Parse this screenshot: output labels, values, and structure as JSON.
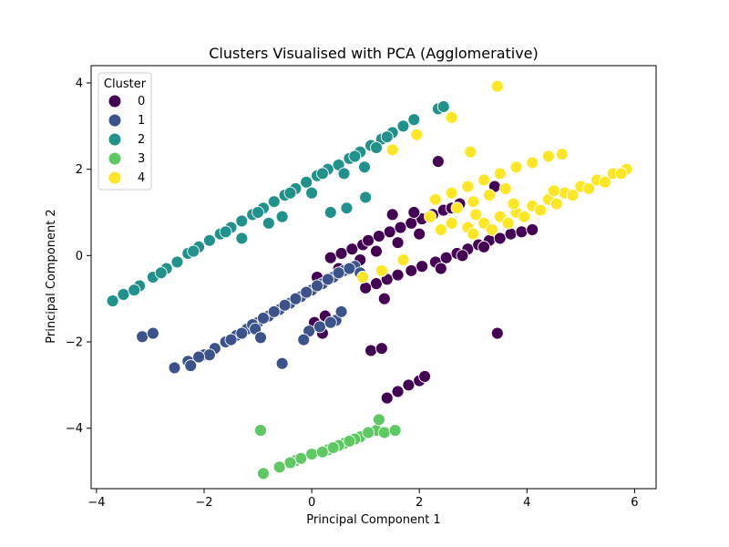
{
  "chart_data": {
    "type": "scatter",
    "title": "Clusters Visualised with PCA (Agglomerative)",
    "xlabel": "Principal Component 1",
    "ylabel": "Principal Component 2",
    "xlim": [
      -4.1,
      6.4
    ],
    "ylim": [
      -5.4,
      4.4
    ],
    "xticks": [
      -4,
      -2,
      0,
      2,
      4,
      6
    ],
    "xtick_labels": [
      "−4",
      "−2",
      "0",
      "2",
      "4",
      "6"
    ],
    "yticks": [
      -4,
      -2,
      0,
      2,
      4
    ],
    "ytick_labels": [
      "−4",
      "−2",
      "0",
      "2",
      "4"
    ],
    "grid": false,
    "legend": {
      "title": "Cluster",
      "placement": "top-left"
    },
    "series": [
      {
        "name": "0",
        "color": "#440154",
        "points": [
          [
            0.35,
            -0.05
          ],
          [
            0.55,
            0.05
          ],
          [
            0.75,
            0.15
          ],
          [
            0.95,
            0.25
          ],
          [
            1.05,
            0.35
          ],
          [
            1.25,
            0.45
          ],
          [
            1.45,
            0.55
          ],
          [
            1.65,
            0.65
          ],
          [
            1.85,
            0.75
          ],
          [
            2.05,
            0.85
          ],
          [
            2.25,
            0.95
          ],
          [
            2.45,
            1.05
          ],
          [
            2.6,
            1.1
          ],
          [
            2.75,
            1.2
          ],
          [
            2.0,
            0.5
          ],
          [
            1.6,
            0.3
          ],
          [
            1.2,
            0.1
          ],
          [
            0.9,
            -0.1
          ],
          [
            0.5,
            -0.3
          ],
          [
            0.1,
            -0.5
          ],
          [
            1.2,
            -0.65
          ],
          [
            1.4,
            -0.55
          ],
          [
            1.6,
            -0.45
          ],
          [
            1.85,
            -0.35
          ],
          [
            2.05,
            -0.25
          ],
          [
            2.3,
            -0.15
          ],
          [
            2.5,
            -0.05
          ],
          [
            2.7,
            0.05
          ],
          [
            2.9,
            0.15
          ],
          [
            3.1,
            0.25
          ],
          [
            3.3,
            0.35
          ],
          [
            3.5,
            0.4
          ],
          [
            3.7,
            0.5
          ],
          [
            3.9,
            0.55
          ],
          [
            4.1,
            0.6
          ],
          [
            1.0,
            -0.75
          ],
          [
            1.35,
            -1.0
          ],
          [
            2.4,
            -0.3
          ],
          [
            2.8,
            0.0
          ],
          [
            3.2,
            0.2
          ],
          [
            2.35,
            2.18
          ],
          [
            3.4,
            1.6
          ],
          [
            3.45,
            -1.8
          ],
          [
            1.1,
            -2.2
          ],
          [
            1.3,
            -2.15
          ],
          [
            1.4,
            -3.3
          ],
          [
            1.6,
            -3.15
          ],
          [
            1.8,
            -3.0
          ],
          [
            2.0,
            -2.9
          ],
          [
            2.1,
            -2.8
          ],
          [
            0.25,
            -1.4
          ],
          [
            0.05,
            -1.55
          ],
          [
            0.2,
            -1.8
          ],
          [
            1.5,
            0.95
          ],
          [
            1.9,
            1.0
          ]
        ]
      },
      {
        "name": "1",
        "color": "#3b528b",
        "points": [
          [
            -2.55,
            -2.6
          ],
          [
            -2.3,
            -2.45
          ],
          [
            -2.0,
            -2.3
          ],
          [
            -1.8,
            -2.15
          ],
          [
            -1.6,
            -2.0
          ],
          [
            -1.4,
            -1.85
          ],
          [
            -1.2,
            -1.7
          ],
          [
            -1.0,
            -1.55
          ],
          [
            -0.8,
            -1.4
          ],
          [
            -0.6,
            -1.25
          ],
          [
            -0.4,
            -1.1
          ],
          [
            -0.2,
            -0.95
          ],
          [
            0.0,
            -0.8
          ],
          [
            0.2,
            -0.65
          ],
          [
            0.4,
            -0.5
          ],
          [
            0.6,
            -0.35
          ],
          [
            0.8,
            -0.25
          ],
          [
            -1.9,
            -2.3
          ],
          [
            -1.5,
            -1.95
          ],
          [
            -1.1,
            -1.6
          ],
          [
            -0.7,
            -1.3
          ],
          [
            -0.3,
            -1.0
          ],
          [
            0.1,
            -0.7
          ],
          [
            0.5,
            -0.4
          ],
          [
            -2.1,
            -2.35
          ],
          [
            -1.3,
            -1.8
          ],
          [
            -0.9,
            -1.45
          ],
          [
            -0.5,
            -1.15
          ],
          [
            -0.1,
            -0.85
          ],
          [
            0.3,
            -0.55
          ],
          [
            0.7,
            -0.3
          ],
          [
            -3.15,
            -1.88
          ],
          [
            -2.95,
            -1.8
          ],
          [
            -0.55,
            -2.5
          ],
          [
            -0.05,
            -1.75
          ],
          [
            0.15,
            -1.65
          ],
          [
            0.45,
            -1.5
          ],
          [
            0.35,
            -1.55
          ],
          [
            0.9,
            -0.4
          ],
          [
            -1.05,
            -1.7
          ],
          [
            -0.95,
            -1.9
          ],
          [
            -2.25,
            -2.55
          ],
          [
            -0.15,
            -1.95
          ],
          [
            0.55,
            -1.3
          ]
        ]
      },
      {
        "name": "2",
        "color": "#21918c",
        "points": [
          [
            -3.7,
            -1.05
          ],
          [
            -3.5,
            -0.9
          ],
          [
            -3.2,
            -0.7
          ],
          [
            -2.95,
            -0.5
          ],
          [
            -2.7,
            -0.3
          ],
          [
            -2.5,
            -0.15
          ],
          [
            -2.3,
            0.05
          ],
          [
            -2.1,
            0.2
          ],
          [
            -1.9,
            0.35
          ],
          [
            -1.7,
            0.5
          ],
          [
            -1.5,
            0.65
          ],
          [
            -1.3,
            0.8
          ],
          [
            -1.1,
            0.95
          ],
          [
            -0.9,
            1.1
          ],
          [
            -0.7,
            1.25
          ],
          [
            -0.5,
            1.4
          ],
          [
            -0.3,
            1.55
          ],
          [
            -0.1,
            1.7
          ],
          [
            0.1,
            1.85
          ],
          [
            0.3,
            2.0
          ],
          [
            0.5,
            2.1
          ],
          [
            0.7,
            2.25
          ],
          [
            0.9,
            2.4
          ],
          [
            1.1,
            2.55
          ],
          [
            1.3,
            2.7
          ],
          [
            1.5,
            2.85
          ],
          [
            1.7,
            3.0
          ],
          [
            1.9,
            3.15
          ],
          [
            -3.3,
            -0.8
          ],
          [
            -2.8,
            -0.4
          ],
          [
            -2.2,
            0.1
          ],
          [
            -1.6,
            0.55
          ],
          [
            -1.0,
            1.0
          ],
          [
            -0.4,
            1.45
          ],
          [
            0.2,
            1.9
          ],
          [
            0.8,
            2.3
          ],
          [
            1.4,
            2.75
          ],
          [
            -0.55,
            0.9
          ],
          [
            0.35,
            1.0
          ],
          [
            0.65,
            1.1
          ],
          [
            1.0,
            1.35
          ],
          [
            0.98,
            2.05
          ],
          [
            2.35,
            3.4
          ],
          [
            2.45,
            3.45
          ],
          [
            -1.3,
            0.4
          ],
          [
            -0.8,
            0.75
          ],
          [
            0.0,
            1.45
          ],
          [
            1.2,
            2.5
          ],
          [
            0.6,
            1.9
          ]
        ]
      },
      {
        "name": "3",
        "color": "#5ec962",
        "points": [
          [
            -0.9,
            -5.05
          ],
          [
            -0.6,
            -4.9
          ],
          [
            -0.3,
            -4.75
          ],
          [
            0.0,
            -4.6
          ],
          [
            0.3,
            -4.5
          ],
          [
            0.6,
            -4.35
          ],
          [
            0.9,
            -4.2
          ],
          [
            1.2,
            -4.05
          ],
          [
            0.5,
            -4.4
          ],
          [
            0.2,
            -4.55
          ],
          [
            -0.2,
            -4.7
          ],
          [
            0.8,
            -4.25
          ],
          [
            1.05,
            -4.1
          ],
          [
            1.35,
            -4.1
          ],
          [
            1.55,
            -4.05
          ],
          [
            1.25,
            -3.8
          ],
          [
            -0.95,
            -4.05
          ],
          [
            -0.4,
            -4.8
          ],
          [
            0.4,
            -4.45
          ],
          [
            0.7,
            -4.3
          ]
        ]
      },
      {
        "name": "4",
        "color": "#fde725",
        "points": [
          [
            3.45,
            3.92
          ],
          [
            2.6,
            3.2
          ],
          [
            1.95,
            2.8
          ],
          [
            1.5,
            2.45
          ],
          [
            2.95,
            2.4
          ],
          [
            2.3,
            1.3
          ],
          [
            2.6,
            1.45
          ],
          [
            2.9,
            1.6
          ],
          [
            3.2,
            1.75
          ],
          [
            3.5,
            1.9
          ],
          [
            3.8,
            2.05
          ],
          [
            4.1,
            2.15
          ],
          [
            4.4,
            2.3
          ],
          [
            4.65,
            2.35
          ],
          [
            2.9,
            0.65
          ],
          [
            3.2,
            0.75
          ],
          [
            3.5,
            0.9
          ],
          [
            3.8,
            1.0
          ],
          [
            4.1,
            1.15
          ],
          [
            4.4,
            1.3
          ],
          [
            4.7,
            1.45
          ],
          [
            5.0,
            1.6
          ],
          [
            5.3,
            1.75
          ],
          [
            5.6,
            1.9
          ],
          [
            5.85,
            2.0
          ],
          [
            3.0,
            0.5
          ],
          [
            3.35,
            0.6
          ],
          [
            3.65,
            0.75
          ],
          [
            3.95,
            0.9
          ],
          [
            4.25,
            1.05
          ],
          [
            4.55,
            1.2
          ],
          [
            4.85,
            1.4
          ],
          [
            5.15,
            1.55
          ],
          [
            5.45,
            1.7
          ],
          [
            5.75,
            1.9
          ],
          [
            2.7,
            1.1
          ],
          [
            3.0,
            1.25
          ],
          [
            3.3,
            1.4
          ],
          [
            3.6,
            1.55
          ],
          [
            2.4,
            0.6
          ],
          [
            2.6,
            0.75
          ],
          [
            1.7,
            -0.1
          ],
          [
            1.3,
            -0.35
          ],
          [
            0.95,
            -0.5
          ],
          [
            2.2,
            0.9
          ],
          [
            3.05,
            0.95
          ],
          [
            3.75,
            1.2
          ],
          [
            4.5,
            1.5
          ]
        ]
      }
    ]
  }
}
